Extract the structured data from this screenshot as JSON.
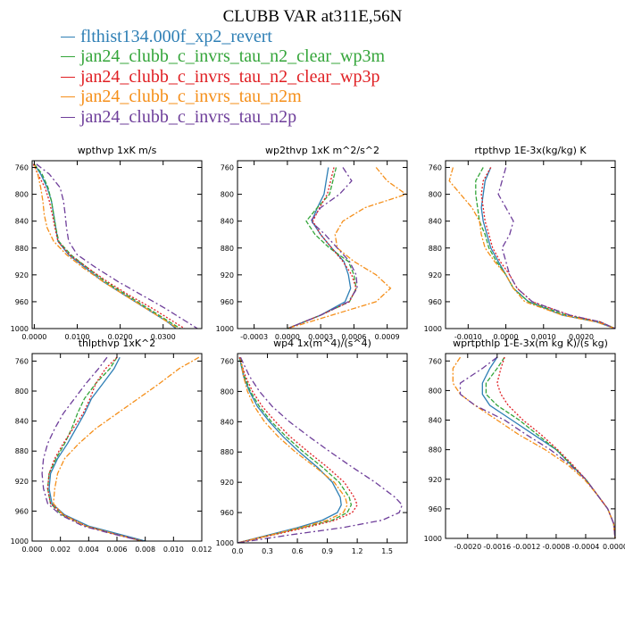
{
  "title": "CLUBB VAR at311E,56N",
  "legend": [
    {
      "name": "flthist134.000f_xp2_revert",
      "color": "#2e7fb5"
    },
    {
      "name": "jan24_clubb_c_invrs_tau_n2_clear_wp3m",
      "color": "#34a53a"
    },
    {
      "name": "jan24_clubb_c_invrs_tau_n2_clear_wp3p",
      "color": "#e01f23"
    },
    {
      "name": "jan24_clubb_c_invrs_tau_n2m",
      "color": "#f58f1a"
    },
    {
      "name": "jan24_clubb_c_invrs_tau_n2p",
      "color": "#6e3e9a"
    }
  ],
  "chart_data": [
    {
      "type": "line",
      "title": "wpthvp   1xK m/s",
      "xlim": [
        -0.0005,
        0.039
      ],
      "ylim": [
        1000,
        750
      ],
      "xticks": [
        0,
        0.01,
        0.02,
        0.03
      ],
      "xtick_labels": [
        "0.0000",
        "0.0100",
        "0.0200",
        "0.0300"
      ],
      "yticks": [
        760,
        800,
        840,
        880,
        920,
        960,
        1000
      ],
      "y": [
        755,
        770,
        790,
        810,
        830,
        850,
        870,
        890,
        910,
        930,
        950,
        970,
        990,
        1000
      ],
      "series": [
        {
          "values": [
            0.0,
            0.0015,
            0.003,
            0.004,
            0.0045,
            0.005,
            0.0055,
            0.008,
            0.012,
            0.016,
            0.021,
            0.026,
            0.031,
            0.033
          ]
        },
        {
          "values": [
            0.0,
            0.0018,
            0.0032,
            0.004,
            0.0045,
            0.005,
            0.0057,
            0.0085,
            0.0125,
            0.0165,
            0.0215,
            0.0265,
            0.0315,
            0.034
          ]
        },
        {
          "values": [
            -0.0002,
            0.0008,
            0.0025,
            0.0035,
            0.0042,
            0.0048,
            0.0055,
            0.0082,
            0.0125,
            0.017,
            0.022,
            0.0275,
            0.0325,
            0.035
          ]
        },
        {
          "values": [
            0.0,
            0.0008,
            0.0015,
            0.002,
            0.0023,
            0.003,
            0.0045,
            0.0075,
            0.0115,
            0.016,
            0.021,
            0.026,
            0.031,
            0.0335
          ]
        },
        {
          "values": [
            0.0005,
            0.0035,
            0.006,
            0.0068,
            0.0072,
            0.0075,
            0.008,
            0.01,
            0.0145,
            0.0195,
            0.025,
            0.0305,
            0.0355,
            0.038
          ]
        }
      ]
    },
    {
      "type": "line",
      "title": "wp2thvp   1xK m^2/s^2",
      "xlim": [
        -0.00045,
        0.00108
      ],
      "ylim": [
        1000,
        750
      ],
      "xticks": [
        -0.0003,
        0,
        0.0003,
        0.0006,
        0.0009
      ],
      "xtick_labels": [
        "-0.0003",
        "0.0000",
        "0.0003",
        "0.0006",
        "0.0009"
      ],
      "yticks": [
        760,
        800,
        840,
        880,
        920,
        960,
        1000
      ],
      "y": [
        760,
        780,
        800,
        820,
        840,
        860,
        880,
        900,
        920,
        940,
        960,
        980,
        1000
      ],
      "series": [
        {
          "values": [
            0.00037,
            0.00035,
            0.00033,
            0.00027,
            0.00022,
            0.0003,
            0.0004,
            0.00051,
            0.00055,
            0.00057,
            0.00052,
            0.0003,
            0.0
          ]
        },
        {
          "values": [
            0.00044,
            0.00041,
            0.00038,
            0.00027,
            0.00017,
            0.00025,
            0.00038,
            0.00055,
            0.0006,
            0.00062,
            0.00056,
            0.0003,
            0.0
          ]
        },
        {
          "values": [
            0.00042,
            0.00039,
            0.00036,
            0.00029,
            0.00023,
            0.0003,
            0.0004,
            0.0005,
            0.00058,
            0.00062,
            0.00056,
            0.0003,
            0.0
          ]
        },
        {
          "values": [
            0.0008,
            0.0009,
            0.00107,
            0.0007,
            0.0005,
            0.00043,
            0.00045,
            0.0006,
            0.0008,
            0.00093,
            0.0008,
            0.0004,
            0.0
          ]
        },
        {
          "values": [
            0.0005,
            0.00058,
            0.00047,
            0.0003,
            0.00021,
            0.00034,
            0.00045,
            0.00056,
            0.00062,
            0.00063,
            0.00055,
            0.0003,
            0.0
          ]
        }
      ]
    },
    {
      "type": "line",
      "title": "rtpthvp   1E-3x(kg/kg) K",
      "xlim": [
        -0.0016,
        0.0029
      ],
      "ylim": [
        1000,
        750
      ],
      "xticks": [
        -0.001,
        0,
        0.001,
        0.002
      ],
      "xtick_labels": [
        "-0.0010",
        "0.0000",
        "0.0010",
        "0.0020"
      ],
      "yticks": [
        760,
        800,
        840,
        880,
        920,
        960,
        1000
      ],
      "y": [
        760,
        780,
        800,
        820,
        840,
        860,
        880,
        900,
        920,
        940,
        960,
        980,
        990,
        1000
      ],
      "series": [
        {
          "values": [
            -0.0004,
            -0.00055,
            -0.0006,
            -0.00065,
            -0.0006,
            -0.0005,
            -0.0004,
            -0.0002,
            0.0,
            0.0002,
            0.0006,
            0.0015,
            0.0024,
            0.0029
          ]
        },
        {
          "values": [
            -0.0006,
            -0.0008,
            -0.0008,
            -0.00075,
            -0.0007,
            -0.00055,
            -0.00045,
            -0.00025,
            0.0,
            0.0002,
            0.0006,
            0.0016,
            0.0025,
            0.0029
          ]
        },
        {
          "values": [
            -0.0004,
            -0.0006,
            -0.00065,
            -0.0006,
            -0.00055,
            -0.00045,
            -0.00035,
            -0.00015,
            0.0001,
            0.0003,
            0.0007,
            0.0017,
            0.0025,
            0.0029
          ]
        },
        {
          "values": [
            -0.0014,
            -0.0015,
            -0.0012,
            -0.0009,
            -0.0007,
            -0.00065,
            -0.00055,
            -0.0003,
            0.0,
            0.0002,
            0.0005,
            0.0015,
            0.0024,
            0.0029
          ]
        },
        {
          "values": [
            0.0,
            -0.0001,
            -0.0002,
            0.0,
            0.0002,
            0.0001,
            -0.0001,
            0.0,
            0.0001,
            0.0003,
            0.0007,
            0.0017,
            0.0025,
            0.0029
          ]
        }
      ]
    },
    {
      "type": "line",
      "title": "thlpthvp   1xK^2",
      "xlim": [
        0,
        0.012
      ],
      "ylim": [
        1000,
        750
      ],
      "xticks": [
        0,
        0.002,
        0.004,
        0.006,
        0.008,
        0.01,
        0.012
      ],
      "xtick_labels": [
        "0.000",
        "0.002",
        "0.004",
        "0.006",
        "0.008",
        "0.010",
        "0.012"
      ],
      "yticks": [
        760,
        800,
        840,
        880,
        920,
        960,
        1000
      ],
      "y": [
        755,
        770,
        790,
        810,
        830,
        850,
        870,
        890,
        910,
        930,
        950,
        965,
        980,
        990,
        1000
      ],
      "series": [
        {
          "values": [
            0.0062,
            0.0058,
            0.005,
            0.0042,
            0.0037,
            0.0031,
            0.0025,
            0.0018,
            0.0013,
            0.0012,
            0.0014,
            0.0023,
            0.004,
            0.006,
            0.008
          ]
        },
        {
          "values": [
            0.006,
            0.0055,
            0.0045,
            0.0037,
            0.0032,
            0.0028,
            0.0023,
            0.0017,
            0.0012,
            0.0011,
            0.0013,
            0.0021,
            0.0038,
            0.0057,
            0.0078
          ]
        },
        {
          "values": [
            0.006,
            0.0052,
            0.0045,
            0.0041,
            0.0036,
            0.0029,
            0.0022,
            0.0016,
            0.0012,
            0.0011,
            0.0013,
            0.0022,
            0.0038,
            0.0057,
            0.0078
          ]
        },
        {
          "values": [
            0.0118,
            0.0104,
            0.009,
            0.0075,
            0.006,
            0.0045,
            0.0033,
            0.0023,
            0.0018,
            0.0016,
            0.0015,
            0.0022,
            0.0038,
            0.0057,
            0.0078
          ]
        },
        {
          "values": [
            0.0053,
            0.0047,
            0.0038,
            0.003,
            0.0022,
            0.0016,
            0.0011,
            0.0008,
            0.0007,
            0.0008,
            0.0011,
            0.002,
            0.0036,
            0.0056,
            0.0078
          ]
        }
      ]
    },
    {
      "type": "line",
      "title": "wp4   1x(m^4)/(s^4)",
      "xlim": [
        0,
        1.7
      ],
      "ylim": [
        1000,
        750
      ],
      "xticks": [
        0,
        0.3,
        0.6,
        0.9,
        1.2,
        1.5
      ],
      "xtick_labels": [
        "0.0",
        "0.3",
        "0.6",
        "0.9",
        "1.2",
        "1.5"
      ],
      "yticks": [
        760,
        800,
        840,
        880,
        920,
        960,
        1000
      ],
      "y": [
        755,
        780,
        800,
        820,
        840,
        860,
        880,
        900,
        920,
        940,
        950,
        960,
        970,
        980,
        990,
        1000
      ],
      "series": [
        {
          "values": [
            0.02,
            0.06,
            0.12,
            0.2,
            0.32,
            0.46,
            0.62,
            0.8,
            0.95,
            1.03,
            1.04,
            1.0,
            0.85,
            0.6,
            0.3,
            0.0
          ]
        },
        {
          "values": [
            0.02,
            0.07,
            0.13,
            0.22,
            0.34,
            0.49,
            0.66,
            0.85,
            1.02,
            1.12,
            1.14,
            1.1,
            0.95,
            0.65,
            0.33,
            0.0
          ]
        },
        {
          "values": [
            0.02,
            0.08,
            0.15,
            0.25,
            0.38,
            0.53,
            0.71,
            0.9,
            1.07,
            1.17,
            1.2,
            1.15,
            0.98,
            0.68,
            0.34,
            0.0
          ]
        },
        {
          "values": [
            0.03,
            0.06,
            0.1,
            0.17,
            0.27,
            0.41,
            0.58,
            0.78,
            0.97,
            1.08,
            1.1,
            1.06,
            0.9,
            0.63,
            0.32,
            0.0
          ]
        },
        {
          "values": [
            0.03,
            0.12,
            0.22,
            0.35,
            0.52,
            0.72,
            0.93,
            1.15,
            1.38,
            1.58,
            1.65,
            1.62,
            1.45,
            1.05,
            0.5,
            0.0
          ]
        }
      ]
    },
    {
      "type": "line",
      "title": "wprtpthlp   1-E-3x(m kg K)/(s kg)",
      "xlim": [
        -0.0023,
        0.0
      ],
      "ylim": [
        1000,
        750
      ],
      "xticks": [
        -0.002,
        -0.0016,
        -0.0012,
        -0.0008,
        -0.0004,
        0
      ],
      "xtick_labels": [
        "-0.0020",
        "-0.0016",
        "-0.0012",
        "-0.0008",
        "-0.0004",
        "0.0000"
      ],
      "yticks": [
        760,
        800,
        840,
        880,
        920,
        960,
        1000
      ],
      "y": [
        755,
        770,
        790,
        805,
        820,
        840,
        860,
        880,
        900,
        920,
        940,
        960,
        980,
        1000
      ],
      "series": [
        {
          "values": [
            -0.0016,
            -0.0017,
            -0.0018,
            -0.0018,
            -0.0017,
            -0.0014,
            -0.0011,
            -0.0008,
            -0.0006,
            -0.0004,
            -0.00025,
            -0.0001,
            -2e-05,
            0.0
          ]
        },
        {
          "values": [
            -0.0015,
            -0.0016,
            -0.00175,
            -0.00175,
            -0.0016,
            -0.0013,
            -0.00105,
            -0.0008,
            -0.0006,
            -0.0004,
            -0.00025,
            -0.0001,
            -2e-05,
            0.0
          ]
        },
        {
          "values": [
            -0.0015,
            -0.00155,
            -0.0016,
            -0.00155,
            -0.00145,
            -0.00125,
            -0.001,
            -0.00078,
            -0.00058,
            -0.0004,
            -0.00025,
            -0.0001,
            -2e-05,
            0.0
          ]
        },
        {
          "values": [
            -0.0021,
            -0.0022,
            -0.0022,
            -0.0021,
            -0.0019,
            -0.0016,
            -0.0013,
            -0.00095,
            -0.00065,
            -0.00042,
            -0.00025,
            -0.0001,
            -2e-05,
            0.0
          ]
        },
        {
          "values": [
            -0.0016,
            -0.0018,
            -0.0021,
            -0.0021,
            -0.0019,
            -0.0015,
            -0.0012,
            -0.00088,
            -0.00062,
            -0.0004,
            -0.00025,
            -0.0001,
            -2e-05,
            0.0
          ]
        }
      ]
    }
  ]
}
